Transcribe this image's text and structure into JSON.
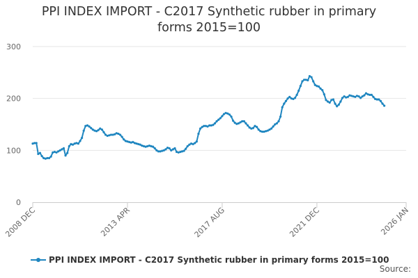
{
  "chart_data": {
    "type": "line",
    "title_line1": "PPI INDEX IMPORT - C2017 Synthetic rubber in primary",
    "title_line2": "forms 2015=100",
    "xlabel": "",
    "ylabel": "",
    "ylim": [
      0,
      300
    ],
    "yticks": [
      "0",
      "100",
      "200",
      "300"
    ],
    "xticks": [
      "2008 DEC",
      "2013 APR",
      "2017 AUG",
      "2021 DEC",
      "2026 JAN"
    ],
    "grid": true,
    "legend_position": "bottom",
    "color": "#1f86c0",
    "credits": "Source:",
    "series": [
      {
        "name": "PPI INDEX IMPORT - C2017 Synthetic rubber in primary forms 2015=100",
        "points": [
          [
            "2008-12",
            113
          ],
          [
            "2009-01",
            114
          ],
          [
            "2009-02",
            114
          ],
          [
            "2009-03",
            93
          ],
          [
            "2009-04",
            95
          ],
          [
            "2009-05",
            89
          ],
          [
            "2009-06",
            85
          ],
          [
            "2009-07",
            84
          ],
          [
            "2009-08",
            85
          ],
          [
            "2009-09",
            85
          ],
          [
            "2009-10",
            88
          ],
          [
            "2009-11",
            96
          ],
          [
            "2009-12",
            97
          ],
          [
            "2010-01",
            96
          ],
          [
            "2010-02",
            98
          ],
          [
            "2010-03",
            100
          ],
          [
            "2010-04",
            102
          ],
          [
            "2010-05",
            104
          ],
          [
            "2010-06",
            90
          ],
          [
            "2010-07",
            95
          ],
          [
            "2010-08",
            108
          ],
          [
            "2010-09",
            112
          ],
          [
            "2010-10",
            111
          ],
          [
            "2010-11",
            113
          ],
          [
            "2010-12",
            114
          ],
          [
            "2011-01",
            113
          ],
          [
            "2011-02",
            118
          ],
          [
            "2011-03",
            124
          ],
          [
            "2011-04",
            138
          ],
          [
            "2011-05",
            147
          ],
          [
            "2011-06",
            148
          ],
          [
            "2011-07",
            146
          ],
          [
            "2011-08",
            143
          ],
          [
            "2011-09",
            140
          ],
          [
            "2011-10",
            138
          ],
          [
            "2011-11",
            137
          ],
          [
            "2011-12",
            139
          ],
          [
            "2012-01",
            142
          ],
          [
            "2012-02",
            140
          ],
          [
            "2012-03",
            135
          ],
          [
            "2012-04",
            130
          ],
          [
            "2012-05",
            128
          ],
          [
            "2012-06",
            129
          ],
          [
            "2012-07",
            130
          ],
          [
            "2012-08",
            130
          ],
          [
            "2012-09",
            131
          ],
          [
            "2012-10",
            133
          ],
          [
            "2012-11",
            132
          ],
          [
            "2012-12",
            130
          ],
          [
            "2013-01",
            126
          ],
          [
            "2013-02",
            121
          ],
          [
            "2013-03",
            118
          ],
          [
            "2013-04",
            117
          ],
          [
            "2013-05",
            116
          ],
          [
            "2013-06",
            115
          ],
          [
            "2013-07",
            116
          ],
          [
            "2013-08",
            114
          ],
          [
            "2013-09",
            113
          ],
          [
            "2013-10",
            112
          ],
          [
            "2013-11",
            111
          ],
          [
            "2013-12",
            109
          ],
          [
            "2014-01",
            108
          ],
          [
            "2014-02",
            107
          ],
          [
            "2014-03",
            108
          ],
          [
            "2014-04",
            109
          ],
          [
            "2014-05",
            108
          ],
          [
            "2014-06",
            107
          ],
          [
            "2014-07",
            104
          ],
          [
            "2014-08",
            100
          ],
          [
            "2014-09",
            98
          ],
          [
            "2014-10",
            98
          ],
          [
            "2014-11",
            99
          ],
          [
            "2014-12",
            100
          ],
          [
            "2015-01",
            102
          ],
          [
            "2015-02",
            105
          ],
          [
            "2015-03",
            104
          ],
          [
            "2015-04",
            100
          ],
          [
            "2015-05",
            102
          ],
          [
            "2015-06",
            104
          ],
          [
            "2015-07",
            97
          ],
          [
            "2015-08",
            96
          ],
          [
            "2015-09",
            97
          ],
          [
            "2015-10",
            98
          ],
          [
            "2015-11",
            99
          ],
          [
            "2015-12",
            103
          ],
          [
            "2016-01",
            108
          ],
          [
            "2016-02",
            111
          ],
          [
            "2016-03",
            113
          ],
          [
            "2016-04",
            112
          ],
          [
            "2016-05",
            114
          ],
          [
            "2016-06",
            117
          ],
          [
            "2016-07",
            132
          ],
          [
            "2016-08",
            142
          ],
          [
            "2016-09",
            145
          ],
          [
            "2016-10",
            147
          ],
          [
            "2016-11",
            147
          ],
          [
            "2016-12",
            146
          ],
          [
            "2017-01",
            148
          ],
          [
            "2017-02",
            148
          ],
          [
            "2017-03",
            149
          ],
          [
            "2017-04",
            152
          ],
          [
            "2017-05",
            156
          ],
          [
            "2017-06",
            159
          ],
          [
            "2017-07",
            162
          ],
          [
            "2017-08",
            166
          ],
          [
            "2017-09",
            170
          ],
          [
            "2017-10",
            172
          ],
          [
            "2017-11",
            171
          ],
          [
            "2017-12",
            169
          ],
          [
            "2018-01",
            165
          ],
          [
            "2018-02",
            157
          ],
          [
            "2018-03",
            153
          ],
          [
            "2018-04",
            151
          ],
          [
            "2018-05",
            152
          ],
          [
            "2018-06",
            154
          ],
          [
            "2018-07",
            156
          ],
          [
            "2018-08",
            156
          ],
          [
            "2018-09",
            152
          ],
          [
            "2018-10",
            148
          ],
          [
            "2018-11",
            144
          ],
          [
            "2018-12",
            142
          ],
          [
            "2019-01",
            143
          ],
          [
            "2019-02",
            147
          ],
          [
            "2019-03",
            145
          ],
          [
            "2019-04",
            140
          ],
          [
            "2019-05",
            137
          ],
          [
            "2019-06",
            136
          ],
          [
            "2019-07",
            136
          ],
          [
            "2019-08",
            137
          ],
          [
            "2019-09",
            138
          ],
          [
            "2019-10",
            140
          ],
          [
            "2019-11",
            142
          ],
          [
            "2019-12",
            146
          ],
          [
            "2020-01",
            150
          ],
          [
            "2020-02",
            152
          ],
          [
            "2020-03",
            156
          ],
          [
            "2020-04",
            165
          ],
          [
            "2020-05",
            183
          ],
          [
            "2020-06",
            190
          ],
          [
            "2020-07",
            195
          ],
          [
            "2020-08",
            200
          ],
          [
            "2020-09",
            203
          ],
          [
            "2020-10",
            200
          ],
          [
            "2020-11",
            199
          ],
          [
            "2020-12",
            201
          ],
          [
            "2021-01",
            207
          ],
          [
            "2021-02",
            215
          ],
          [
            "2021-03",
            224
          ],
          [
            "2021-04",
            233
          ],
          [
            "2021-05",
            236
          ],
          [
            "2021-06",
            236
          ],
          [
            "2021-07",
            235
          ],
          [
            "2021-08",
            243
          ],
          [
            "2021-09",
            241
          ],
          [
            "2021-10",
            233
          ],
          [
            "2021-11",
            226
          ],
          [
            "2021-12",
            224
          ],
          [
            "2022-01",
            223
          ],
          [
            "2022-02",
            219
          ],
          [
            "2022-03",
            216
          ],
          [
            "2022-04",
            208
          ],
          [
            "2022-05",
            197
          ],
          [
            "2022-06",
            194
          ],
          [
            "2022-07",
            192
          ],
          [
            "2022-08",
            197
          ],
          [
            "2022-09",
            198
          ],
          [
            "2022-10",
            190
          ],
          [
            "2022-11",
            185
          ],
          [
            "2022-12",
            188
          ],
          [
            "2023-01",
            194
          ],
          [
            "2023-02",
            201
          ],
          [
            "2023-03",
            204
          ],
          [
            "2023-04",
            202
          ],
          [
            "2023-05",
            203
          ],
          [
            "2023-06",
            206
          ],
          [
            "2023-07",
            205
          ],
          [
            "2023-08",
            204
          ],
          [
            "2023-09",
            203
          ],
          [
            "2023-10",
            205
          ],
          [
            "2023-11",
            204
          ],
          [
            "2023-12",
            201
          ],
          [
            "2024-01",
            204
          ],
          [
            "2024-02",
            206
          ],
          [
            "2024-03",
            210
          ],
          [
            "2024-04",
            208
          ],
          [
            "2024-05",
            207
          ],
          [
            "2024-06",
            207
          ],
          [
            "2024-07",
            203
          ],
          [
            "2024-08",
            199
          ],
          [
            "2024-09",
            198
          ],
          [
            "2024-10",
            198
          ],
          [
            "2024-11",
            195
          ],
          [
            "2024-12",
            190
          ],
          [
            "2025-01",
            186
          ]
        ]
      }
    ]
  }
}
